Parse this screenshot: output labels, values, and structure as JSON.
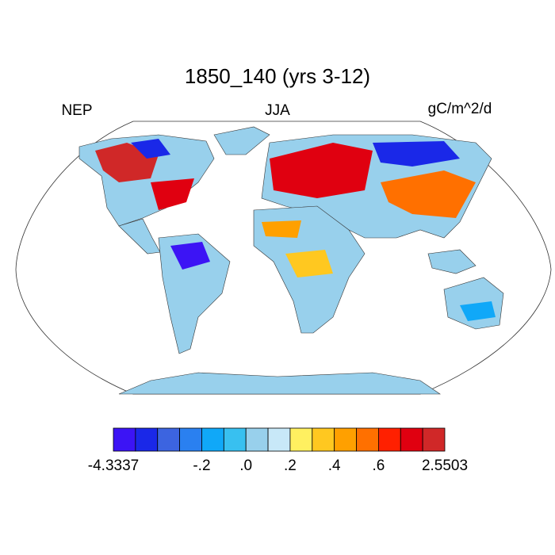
{
  "title": "1850_140 (yrs 3-12)",
  "left_label": "NEP",
  "center_label": "JJA",
  "right_label": "gC/m^2/d",
  "colorbar": {
    "colors": [
      "#3c14f5",
      "#1a28e8",
      "#3c64e0",
      "#2a80f0",
      "#10a8f8",
      "#38c0f0",
      "#98d0ec",
      "#c8e8f8",
      "#fff060",
      "#ffc820",
      "#ffa000",
      "#ff7000",
      "#ff2000",
      "#e00010",
      "#d02828"
    ],
    "labels": [
      "-4.3337",
      null,
      null,
      null,
      "-.2",
      null,
      ".0",
      null,
      ".2",
      null,
      ".4",
      null,
      ".6",
      null,
      null,
      "2.5503"
    ]
  }
}
